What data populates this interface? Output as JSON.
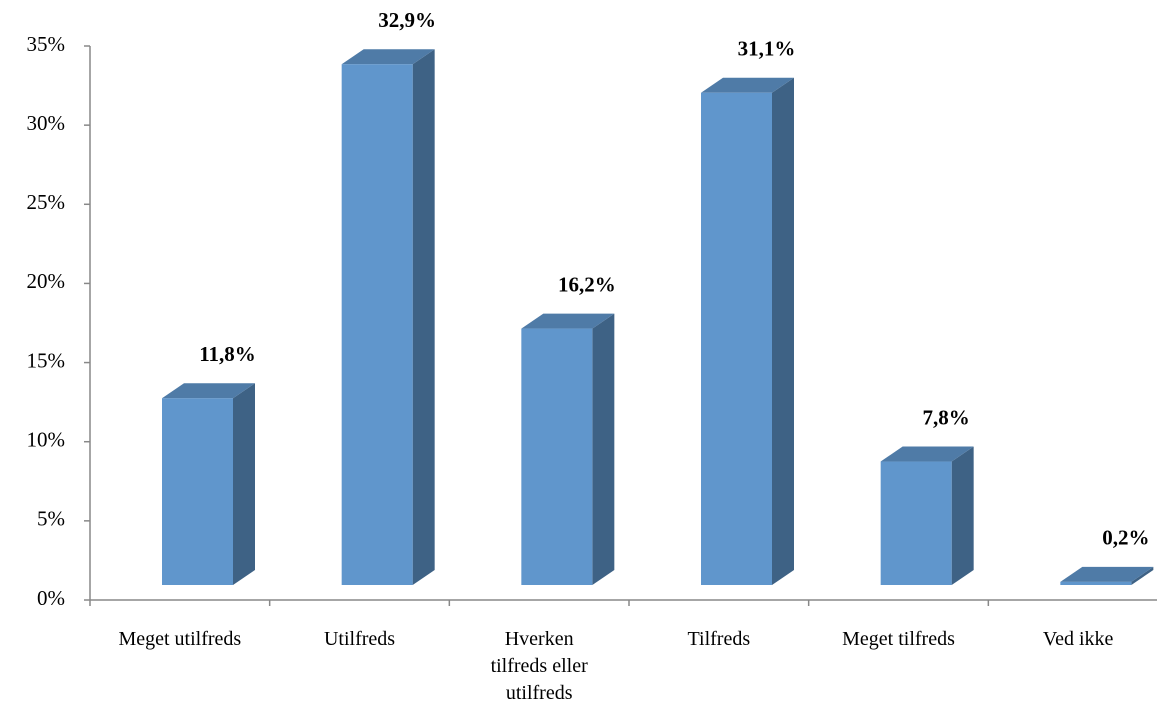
{
  "chart_data": {
    "type": "bar3d",
    "categories": [
      "Meget utilfreds",
      "Utilfreds",
      "Hverken tilfreds eller utilfreds",
      "Tilfreds",
      "Meget tilfreds",
      "Ved ikke"
    ],
    "values": [
      11.8,
      32.9,
      16.2,
      31.1,
      7.8,
      0.2
    ],
    "value_labels": [
      "11,8%",
      "32,9%",
      "16,2%",
      "31,1%",
      "7,8%",
      "0,2%"
    ],
    "color": "#6096cc",
    "ylim": [
      0,
      35
    ],
    "yticks": [
      {
        "value": 0,
        "label": "0%"
      },
      {
        "value": 5,
        "label": "5%"
      },
      {
        "value": 10,
        "label": "10%"
      },
      {
        "value": 15,
        "label": "15%"
      },
      {
        "value": 20,
        "label": "20%"
      },
      {
        "value": 25,
        "label": "25%"
      },
      {
        "value": 30,
        "label": "30%"
      },
      {
        "value": 35,
        "label": "35%"
      }
    ],
    "grid": false
  }
}
